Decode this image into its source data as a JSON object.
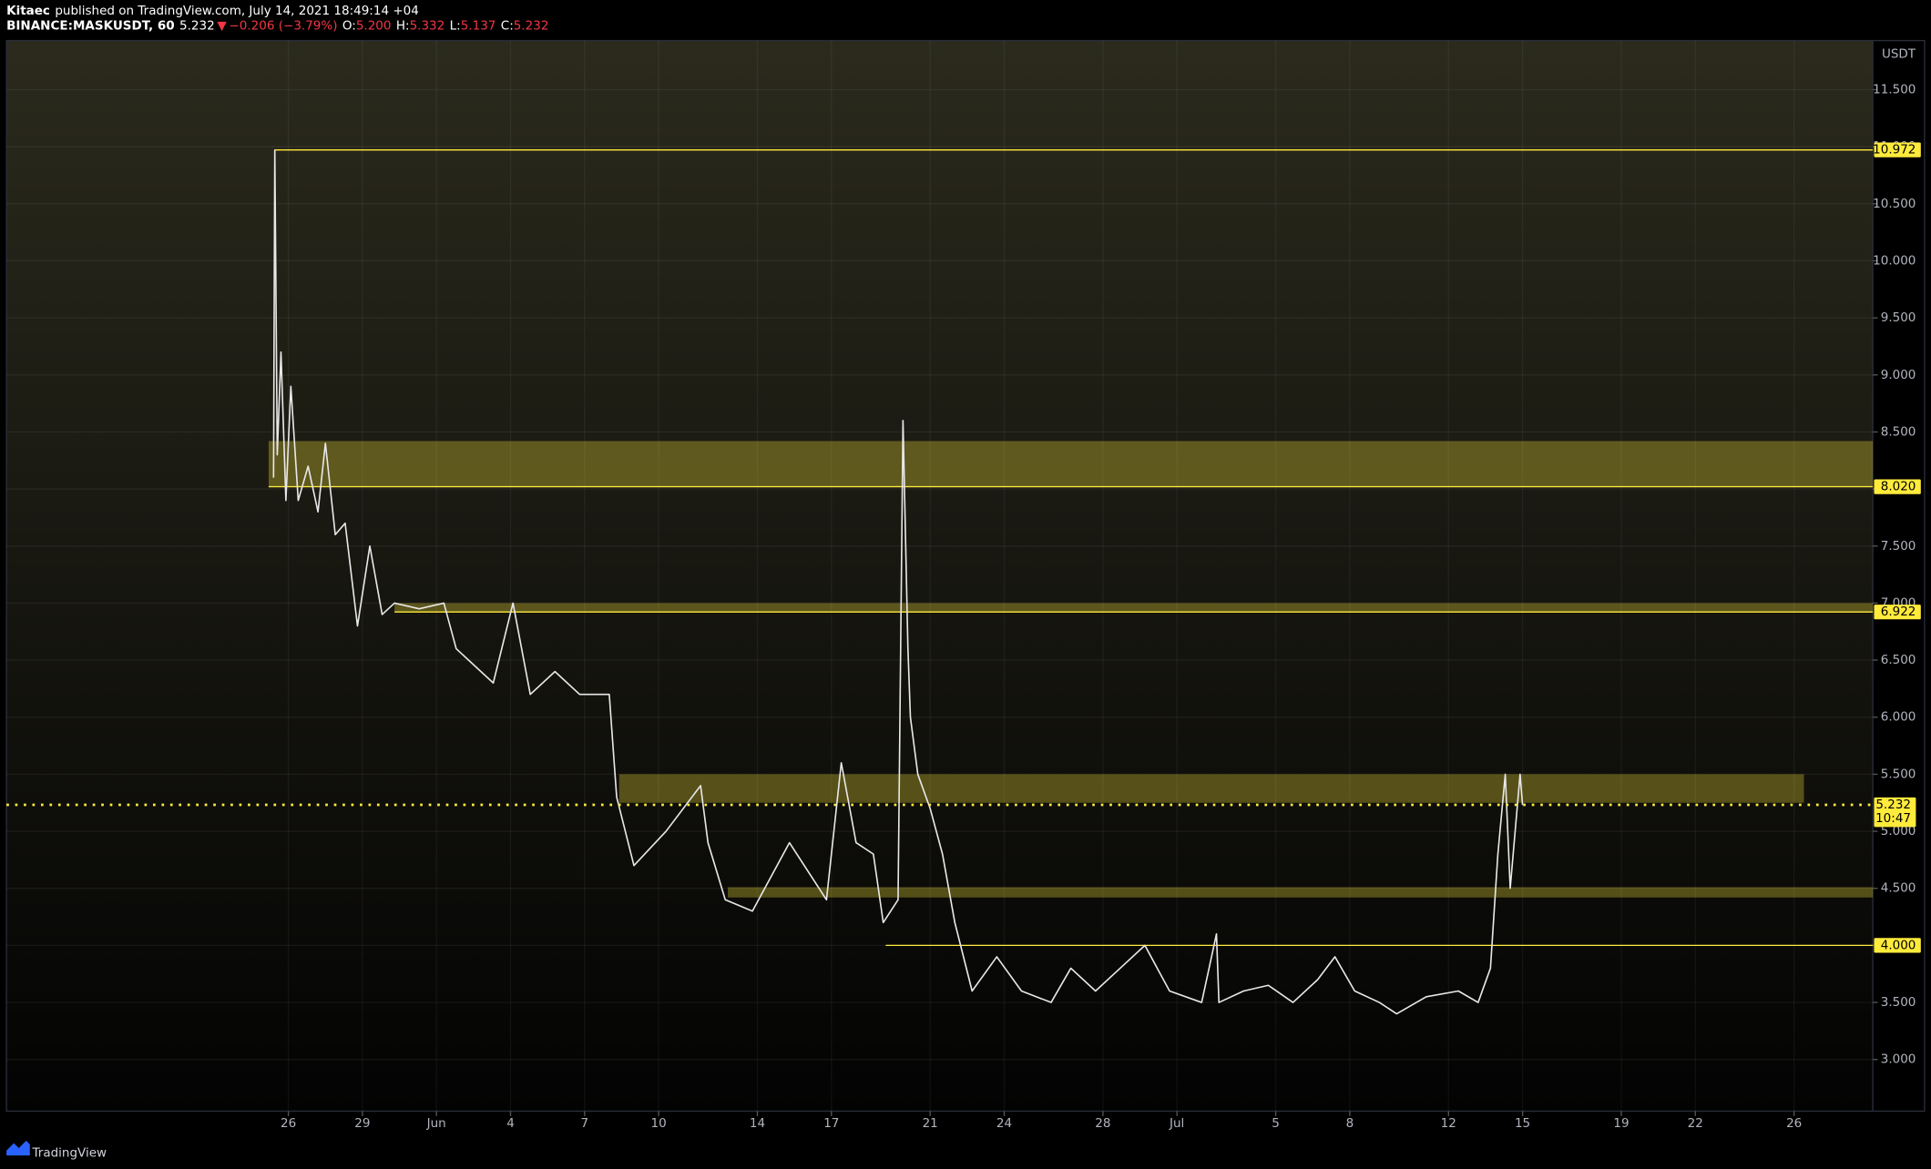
{
  "chart_data": {
    "type": "line",
    "author": "Kitaec",
    "title": "published on TradingView.com, July 14, 2021 18:49:14 +04",
    "symbol": "BINANCE:MASKUSDT, 60",
    "last_text": "5.232",
    "arrow": "▼",
    "change": "−0.206 (−3.79%)",
    "ohlc": {
      "labels": [
        "O:",
        "H:",
        "L:",
        "C:"
      ],
      "values": [
        5.2,
        5.332,
        5.137,
        5.232
      ],
      "value_labels": [
        "5.200",
        "5.332",
        "5.137",
        "5.232"
      ]
    },
    "y_unit": "USDT",
    "ylim": [
      2.547,
      11.93
    ],
    "yticks": [
      {
        "value": 3,
        "label": "3.000"
      },
      {
        "value": 3.5,
        "label": "3.500"
      },
      {
        "value": 4,
        "label": "4.000"
      },
      {
        "value": 4.5,
        "label": "4.500"
      },
      {
        "value": 5,
        "label": "5.000"
      },
      {
        "value": 5.5,
        "label": "5.500"
      },
      {
        "value": 6,
        "label": "6.000"
      },
      {
        "value": 6.5,
        "label": "6.500"
      },
      {
        "value": 7,
        "label": "7.000"
      },
      {
        "value": 7.5,
        "label": "7.500"
      },
      {
        "value": 8,
        "label": "8.000"
      },
      {
        "value": 8.5,
        "label": "8.500"
      },
      {
        "value": 9,
        "label": "9.000"
      },
      {
        "value": 9.5,
        "label": "9.500"
      },
      {
        "value": 10,
        "label": "10.000"
      },
      {
        "value": 10.5,
        "label": "10.500"
      },
      {
        "value": 11,
        "label": "11.000"
      },
      {
        "value": 11.5,
        "label": "11.500"
      }
    ],
    "xlim": [
      -11.42,
      64.19
    ],
    "xticks": [
      {
        "value": 0,
        "label": "26"
      },
      {
        "value": 3,
        "label": "29"
      },
      {
        "value": 6,
        "label": "Jun"
      },
      {
        "value": 9,
        "label": "4"
      },
      {
        "value": 12,
        "label": "7"
      },
      {
        "value": 15,
        "label": "10"
      },
      {
        "value": 19,
        "label": "14"
      },
      {
        "value": 22,
        "label": "17"
      },
      {
        "value": 26,
        "label": "21"
      },
      {
        "value": 29,
        "label": "24"
      },
      {
        "value": 33,
        "label": "28"
      },
      {
        "value": 36,
        "label": "Jul"
      },
      {
        "value": 40,
        "label": "5"
      },
      {
        "value": 43,
        "label": "8"
      },
      {
        "value": 47,
        "label": "12"
      },
      {
        "value": 50,
        "label": "15"
      },
      {
        "value": 54,
        "label": "19"
      },
      {
        "value": 57,
        "label": "22"
      },
      {
        "value": 61,
        "label": "26"
      }
    ],
    "grid": true,
    "series": [
      {
        "color": "#e8e8e8",
        "x": [
          -0.6,
          -0.55,
          -0.45,
          -0.3,
          -0.1,
          0.1,
          0.4,
          0.8,
          1.2,
          1.5,
          1.9,
          2.3,
          2.8,
          3.3,
          3.8,
          4.3,
          5.3,
          6.3,
          6.8,
          8.3,
          9.1,
          9.8,
          10.8,
          11.8,
          13.0,
          13.3,
          14.0,
          15.3,
          16.7,
          17.0,
          17.7,
          18.8,
          20.3,
          21.2,
          21.8,
          22.4,
          23.0,
          23.7,
          24.1,
          24.7,
          24.9,
          25.1,
          25.2,
          25.5,
          26.0,
          26.5,
          27.0,
          27.7,
          28.7,
          29.7,
          30.9,
          31.7,
          32.7,
          33.7,
          34.7,
          35.7,
          37.0,
          37.6,
          37.7,
          38.7,
          39.7,
          40.7,
          41.7,
          42.4,
          43.2,
          44.2,
          44.9,
          46.1,
          47.4,
          48.2,
          48.7,
          49.0,
          49.3,
          49.5,
          49.9,
          50.0
        ],
        "values": [
          8.1,
          10.97,
          8.3,
          9.2,
          7.9,
          8.9,
          7.9,
          8.2,
          7.8,
          8.4,
          7.6,
          7.7,
          6.8,
          7.5,
          6.9,
          7.0,
          6.95,
          7.0,
          6.6,
          6.3,
          7.0,
          6.2,
          6.4,
          6.2,
          6.2,
          5.3,
          4.7,
          5.0,
          5.4,
          4.9,
          4.4,
          4.3,
          4.9,
          4.6,
          4.4,
          5.6,
          4.9,
          4.8,
          4.2,
          4.4,
          8.6,
          6.6,
          6.0,
          5.5,
          5.2,
          4.8,
          4.2,
          3.6,
          3.9,
          3.6,
          3.5,
          3.8,
          3.6,
          3.8,
          4.0,
          3.6,
          3.5,
          4.1,
          3.5,
          3.6,
          3.65,
          3.5,
          3.7,
          3.9,
          3.6,
          3.5,
          3.4,
          3.55,
          3.6,
          3.5,
          3.8,
          4.8,
          5.5,
          4.5,
          5.5,
          5.23
        ]
      }
    ],
    "zones": {
      "lows": [
        8.02,
        6.922,
        5.25,
        4.42
      ],
      "highs": [
        8.42,
        7.0,
        5.5,
        4.51
      ],
      "starts": [
        -0.8,
        4.3,
        13.4,
        17.8
      ],
      "ends": [
        64.19,
        64.19,
        61.4,
        64.19
      ],
      "color": "#ffeb3b"
    },
    "levels": {
      "values": [
        10.972,
        8.02,
        6.922,
        4.0
      ],
      "value_labels": [
        "10.972",
        "8.020",
        "6.922",
        "4.000"
      ],
      "starts": [
        -0.55,
        -0.8,
        4.3,
        24.2
      ],
      "color": "#ffeb3b"
    },
    "last_price": {
      "value": 5.232,
      "countdown": "10:47"
    }
  },
  "footer": "TradingView"
}
